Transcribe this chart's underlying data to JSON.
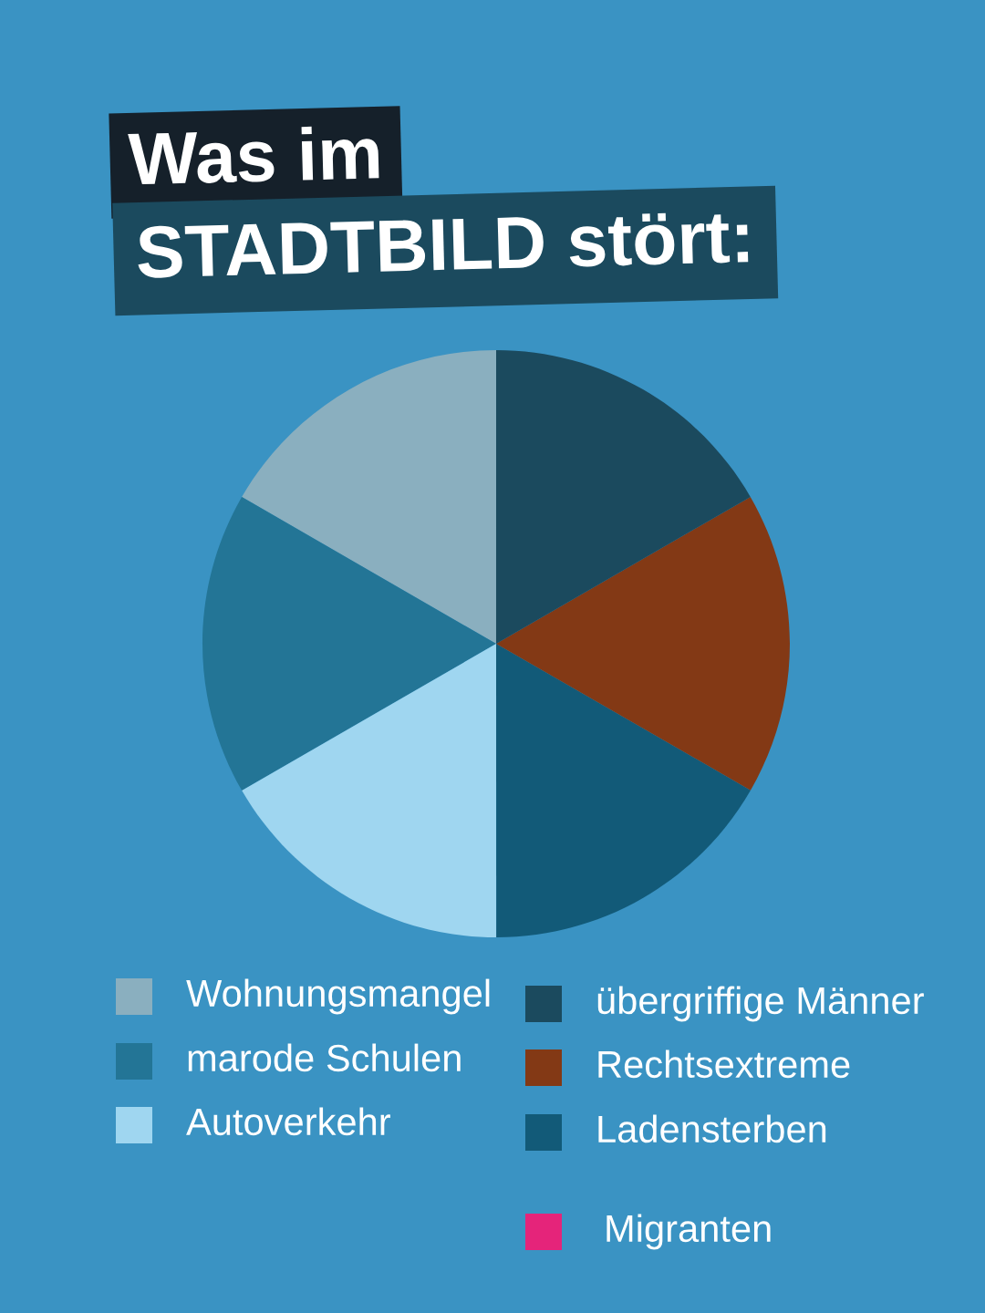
{
  "chart_data": {
    "type": "pie",
    "title": "Was im STADTBILD stört:",
    "categories": [
      "Wohnungsmangel",
      "marode Schulen",
      "Autoverkehr",
      "Ladensterben",
      "Rechtsextreme",
      "übergriffige Männer",
      "Migranten"
    ],
    "values": [
      16.67,
      16.67,
      16.67,
      16.67,
      16.66,
      16.66,
      0
    ],
    "colors": [
      "#8aafbf",
      "#237596",
      "#9fd6f0",
      "#125a78",
      "#833915",
      "#1b4a5e",
      "#e5247a"
    ],
    "legend": "bottom"
  }
}
